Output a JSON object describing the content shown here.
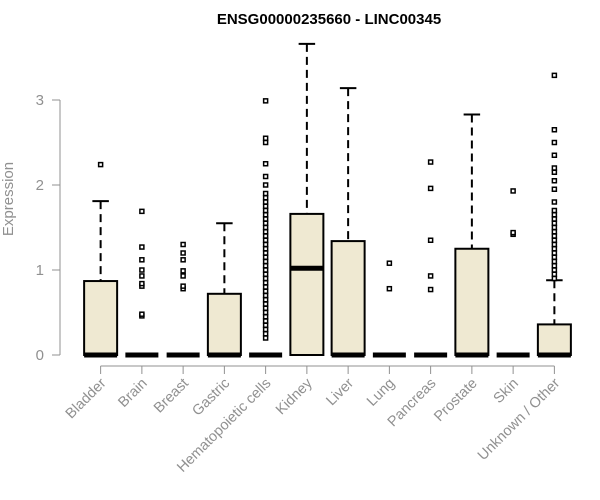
{
  "chart_data": {
    "type": "box",
    "title": "ENSG00000235660 - LINC00345",
    "xlabel": "",
    "ylabel": "Expression",
    "ylim": [
      0,
      3.7
    ],
    "yticks": [
      0,
      1,
      2,
      3
    ],
    "grid": false,
    "legend": "none",
    "box_fill": "#efe9d2",
    "box_stroke": "#000000",
    "axis_color": "#909090",
    "categories": [
      "Bladder",
      "Brain",
      "Breast",
      "Gastric",
      "Hematopoietic cells",
      "Kidney",
      "Liver",
      "Lung",
      "Pancreas",
      "Prostate",
      "Skin",
      "Unknown / Other"
    ],
    "boxes": [
      {
        "min": 0,
        "q1": 0,
        "median": 0,
        "q3": 0.87,
        "max": 1.81,
        "outliers": [
          2.24
        ]
      },
      {
        "min": 0,
        "q1": 0,
        "median": 0,
        "q3": 0,
        "max": 0,
        "outliers": [
          0.46,
          0.48,
          0.81,
          0.84,
          0.93,
          1.0,
          1.12,
          1.27,
          1.69
        ]
      },
      {
        "min": 0,
        "q1": 0,
        "median": 0,
        "q3": 0,
        "max": 0,
        "outliers": [
          0.78,
          0.81,
          0.93,
          0.99,
          1.12,
          1.2,
          1.3
        ]
      },
      {
        "min": 0,
        "q1": 0,
        "median": 0,
        "q3": 0.72,
        "max": 1.55,
        "outliers": []
      },
      {
        "min": 0,
        "q1": 0,
        "median": 0,
        "q3": 0,
        "max": 0,
        "outliers": [
          0.2,
          0.25,
          0.3,
          0.35,
          0.4,
          0.45,
          0.5,
          0.55,
          0.6,
          0.65,
          0.7,
          0.75,
          0.8,
          0.85,
          0.9,
          0.95,
          1.0,
          1.05,
          1.1,
          1.15,
          1.2,
          1.25,
          1.3,
          1.35,
          1.4,
          1.45,
          1.5,
          1.55,
          1.6,
          1.65,
          1.7,
          1.75,
          1.8,
          1.85,
          1.9,
          2.0,
          2.1,
          2.25,
          2.5,
          2.55,
          2.99
        ]
      },
      {
        "min": 0,
        "q1": 0,
        "median": 1.02,
        "q3": 1.66,
        "max": 3.66,
        "outliers": []
      },
      {
        "min": 0,
        "q1": 0,
        "median": 0,
        "q3": 1.34,
        "max": 3.14,
        "outliers": []
      },
      {
        "min": 0,
        "q1": 0,
        "median": 0,
        "q3": 0,
        "max": 0,
        "outliers": [
          0.78,
          1.08
        ]
      },
      {
        "min": 0,
        "q1": 0,
        "median": 0,
        "q3": 0,
        "max": 0,
        "outliers": [
          0.77,
          0.93,
          1.35,
          1.96,
          2.27
        ]
      },
      {
        "min": 0,
        "q1": 0,
        "median": 0,
        "q3": 1.25,
        "max": 2.83,
        "outliers": []
      },
      {
        "min": 0,
        "q1": 0,
        "median": 0,
        "q3": 0,
        "max": 0,
        "outliers": [
          1.42,
          1.44,
          1.93
        ]
      },
      {
        "min": 0,
        "q1": 0,
        "median": 0,
        "q3": 0.36,
        "max": 0.88,
        "outliers": [
          0.9,
          0.95,
          1.0,
          1.05,
          1.1,
          1.15,
          1.2,
          1.25,
          1.3,
          1.35,
          1.4,
          1.45,
          1.5,
          1.55,
          1.6,
          1.65,
          1.7,
          1.8,
          1.95,
          2.05,
          2.15,
          2.2,
          2.35,
          2.5,
          2.65,
          3.29
        ]
      }
    ]
  }
}
